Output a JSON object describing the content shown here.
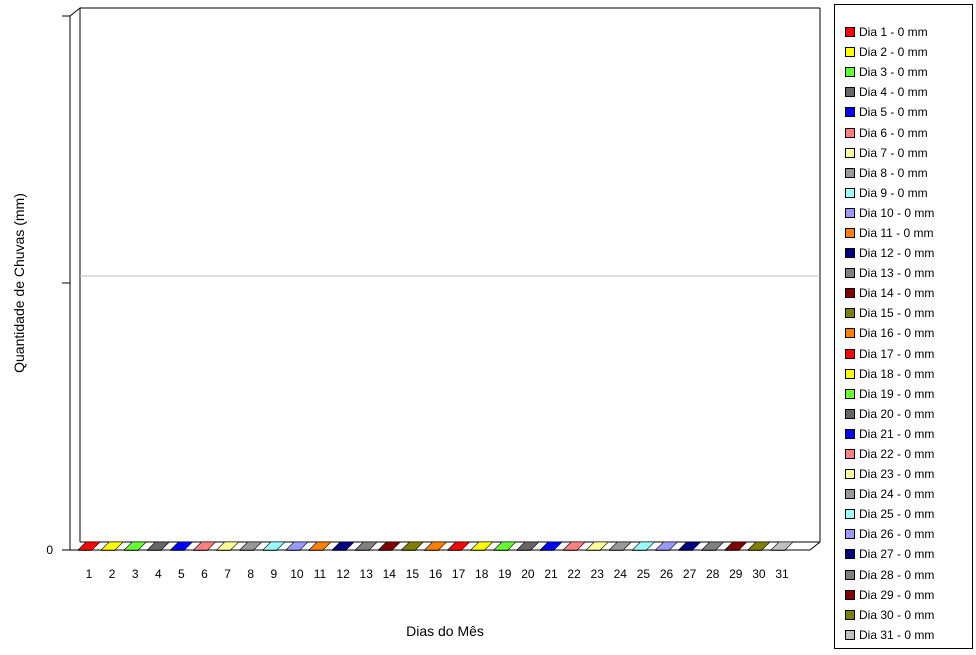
{
  "chart_data": {
    "type": "bar",
    "xlabel": "Dias do Mês",
    "ylabel": "Quantidade de Chuvas (mm)",
    "y_tick_labels": [
      "0"
    ],
    "grid": true,
    "legend_position": "right",
    "categories": [
      "1",
      "2",
      "3",
      "4",
      "5",
      "6",
      "7",
      "8",
      "9",
      "10",
      "11",
      "12",
      "13",
      "14",
      "15",
      "16",
      "17",
      "18",
      "19",
      "20",
      "21",
      "22",
      "23",
      "24",
      "25",
      "26",
      "27",
      "28",
      "29",
      "30",
      "31"
    ],
    "values": [
      0,
      0,
      0,
      0,
      0,
      0,
      0,
      0,
      0,
      0,
      0,
      0,
      0,
      0,
      0,
      0,
      0,
      0,
      0,
      0,
      0,
      0,
      0,
      0,
      0,
      0,
      0,
      0,
      0,
      0,
      0
    ],
    "colors": [
      "#ff0000",
      "#ffff00",
      "#66ff33",
      "#666666",
      "#0000ff",
      "#ff8080",
      "#ffff99",
      "#999999",
      "#99ffff",
      "#9999ff",
      "#ff8000",
      "#000080",
      "#808080",
      "#800000",
      "#808000",
      "#ff8000",
      "#ff0000",
      "#ffff00",
      "#66ff33",
      "#666666",
      "#0000ff",
      "#ff8080",
      "#ffff99",
      "#999999",
      "#99ffff",
      "#9999ff",
      "#000080",
      "#808080",
      "#800000",
      "#808000",
      "#c0c0c0"
    ],
    "legend": [
      "Dia 1 - 0 mm",
      "Dia 2 - 0 mm",
      "Dia 3 - 0 mm",
      "Dia 4 - 0 mm",
      "Dia 5 - 0 mm",
      "Dia 6 - 0 mm",
      "Dia 7 - 0 mm",
      "Dia 8 - 0 mm",
      "Dia 9 - 0 mm",
      "Dia 10 - 0 mm",
      "Dia 11 - 0 mm",
      "Dia 12 - 0 mm",
      "Dia 13 - 0 mm",
      "Dia 14 - 0 mm",
      "Dia 15 - 0 mm",
      "Dia 16 - 0 mm",
      "Dia 17 - 0 mm",
      "Dia 18 - 0 mm",
      "Dia 19 - 0 mm",
      "Dia 20 - 0 mm",
      "Dia 21 - 0 mm",
      "Dia 22 - 0 mm",
      "Dia 23 - 0 mm",
      "Dia 24 - 0 mm",
      "Dia 25 - 0 mm",
      "Dia 26 - 0 mm",
      "Dia 27 - 0 mm",
      "Dia 28 - 0 mm",
      "Dia 29 - 0 mm",
      "Dia 30 - 0 mm",
      "Dia 31 - 0 mm"
    ]
  }
}
